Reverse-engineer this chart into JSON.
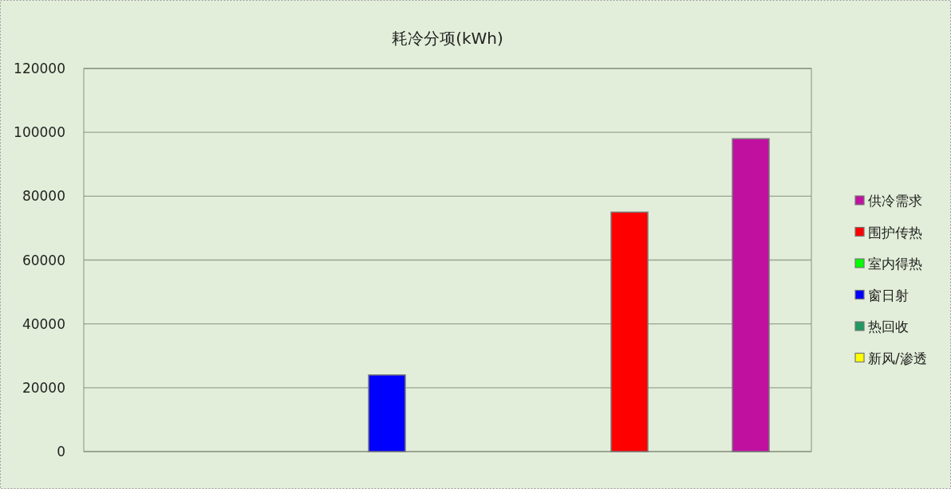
{
  "chart_data": {
    "type": "bar",
    "title": "耗冷分项(kWh)",
    "categories": [
      null
    ],
    "series": [
      {
        "name": "新风/渗透",
        "color": "#ffff00",
        "values": [
          0
        ]
      },
      {
        "name": "热回收",
        "color": "#209a60",
        "values": [
          0
        ]
      },
      {
        "name": "窗日射",
        "color": "#0000ff",
        "values": [
          24000
        ]
      },
      {
        "name": "室内得热",
        "color": "#00ff00",
        "values": [
          0
        ]
      },
      {
        "name": "围护传热",
        "color": "#ff0000",
        "values": [
          75000
        ]
      },
      {
        "name": "供冷需求",
        "color": "#c010a0",
        "values": [
          98000
        ]
      }
    ],
    "ylim": [
      0,
      120000
    ],
    "yticks": [
      0,
      20000,
      40000,
      60000,
      80000,
      100000,
      120000
    ],
    "grid": "y",
    "legend": "right",
    "tick_labels": "y"
  }
}
